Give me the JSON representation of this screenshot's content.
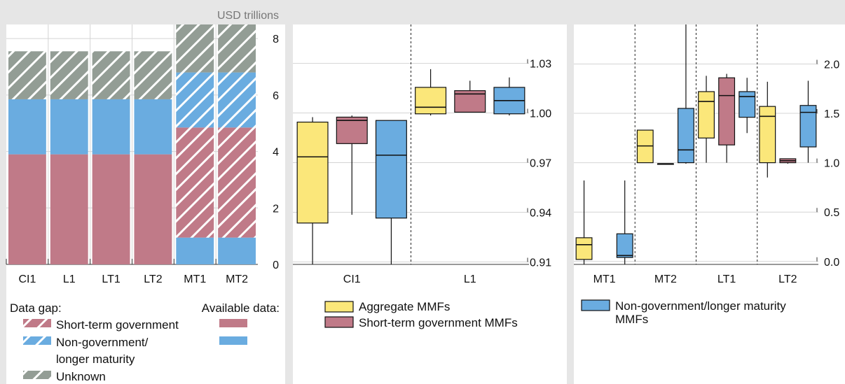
{
  "colors": {
    "yellow": "#fbe77a",
    "red": "#c07a88",
    "blue": "#6aace0",
    "grey": "#939d95",
    "grid": "#d4d4d4",
    "background": "#e6e6e6",
    "panel": "#ffffff"
  },
  "chart_data": [
    {
      "type": "bar",
      "stacked": true,
      "unit_label": "USD trillions",
      "categories": [
        "CI1",
        "L1",
        "LT1",
        "LT2",
        "MT1",
        "MT2"
      ],
      "ylim": [
        0,
        8.5
      ],
      "yticks": [
        "0",
        "2",
        "4",
        "6",
        "8"
      ],
      "grid": true,
      "series": [
        {
          "color_key": "blue",
          "pattern": "solid",
          "values": [
            0,
            0,
            0,
            0,
            0.95,
            0.95
          ]
        },
        {
          "color_key": "red",
          "pattern": "solid",
          "values": [
            3.9,
            3.9,
            3.9,
            3.9,
            0,
            0
          ]
        },
        {
          "color_key": "red",
          "pattern": "hatched",
          "values": [
            0,
            0,
            0,
            0,
            3.9,
            3.9
          ]
        },
        {
          "color_key": "blue",
          "pattern": "solid",
          "values": [
            1.95,
            1.95,
            1.95,
            1.95,
            0,
            0
          ]
        },
        {
          "color_key": "blue",
          "pattern": "hatched",
          "values": [
            0,
            0,
            0,
            0,
            1.95,
            1.95
          ]
        },
        {
          "color_key": "grey",
          "pattern": "hatched",
          "values": [
            1.7,
            1.7,
            1.7,
            1.7,
            1.7,
            1.7
          ]
        }
      ],
      "legend": {
        "data_gap_title": "Data gap:",
        "available_title": "Available data:",
        "items": [
          "Short-term government",
          "Non-government/",
          "longer maturity",
          "Unknown"
        ]
      }
    },
    {
      "type": "boxplot",
      "groups": [
        "CI1",
        "L1"
      ],
      "ylim": [
        0.9085,
        1.0535
      ],
      "yticks": [
        "0.91",
        "0.94",
        "0.97",
        "1.00",
        "1.03"
      ],
      "ytick_values": [
        0.91,
        0.94,
        0.97,
        1.0,
        1.03
      ],
      "grid": true,
      "boxes": [
        {
          "group": "CI1",
          "color_key": "yellow",
          "whisker_low": 0.9085,
          "q1": 0.9335,
          "median": 0.9735,
          "q3": 0.9945,
          "whisker_high": 0.9975
        },
        {
          "group": "CI1",
          "color_key": "red",
          "whisker_low": 0.9385,
          "q1": 0.9815,
          "median": 0.9955,
          "q3": 0.9975,
          "whisker_high": 0.9985
        },
        {
          "group": "CI1",
          "color_key": "blue",
          "whisker_low": 0.9085,
          "q1": 0.9365,
          "median": 0.9745,
          "q3": 0.9955,
          "whisker_high": 0.9955
        },
        {
          "group": "L1",
          "color_key": "yellow",
          "whisker_low": 0.9985,
          "q1": 0.9995,
          "median": 1.0035,
          "q3": 1.0155,
          "whisker_high": 1.0265
        },
        {
          "group": "L1",
          "color_key": "red",
          "whisker_low": 1.0005,
          "q1": 1.0005,
          "median": 1.0115,
          "q3": 1.0135,
          "whisker_high": 1.0195
        },
        {
          "group": "L1",
          "color_key": "blue",
          "whisker_low": 0.9985,
          "q1": 0.9995,
          "median": 1.0075,
          "q3": 1.0155,
          "whisker_high": 1.0215
        }
      ],
      "legend": [
        "Aggregate MMFs",
        "Short-term government MMFs"
      ]
    },
    {
      "type": "boxplot",
      "groups": [
        "MT1",
        "MT2",
        "LT1",
        "LT2"
      ],
      "ylim": [
        -0.03,
        2.4
      ],
      "yticks": [
        "0.0",
        "0.5",
        "1.0",
        "1.5",
        "2.0"
      ],
      "ytick_values": [
        0,
        0.5,
        1.0,
        1.5,
        2.0
      ],
      "grid": true,
      "boxes": [
        {
          "group": "MT1",
          "color_key": "yellow",
          "whisker_low": -0.03,
          "q1": 0.02,
          "median": 0.17,
          "q3": 0.24,
          "whisker_high": 0.82
        },
        {
          "group": "MT1",
          "color_key": "blue",
          "whisker_low": -0.03,
          "q1": 0.04,
          "median": 0.06,
          "q3": 0.28,
          "whisker_high": 0.82
        },
        {
          "group": "MT2",
          "color_key": "yellow",
          "whisker_low": 1.0,
          "q1": 1.0,
          "median": 1.17,
          "q3": 1.33,
          "whisker_high": 1.33
        },
        {
          "group": "MT2",
          "color_key": "red",
          "whisker_low": 0.99,
          "q1": 0.99,
          "median": 0.99,
          "q3": 0.99,
          "whisker_high": 0.99
        },
        {
          "group": "MT2",
          "color_key": "blue",
          "whisker_low": 0.99,
          "q1": 1.0,
          "median": 1.13,
          "q3": 1.55,
          "whisker_high": 2.4
        },
        {
          "group": "LT1",
          "color_key": "yellow",
          "whisker_low": 1.0,
          "q1": 1.25,
          "median": 1.62,
          "q3": 1.72,
          "whisker_high": 1.88
        },
        {
          "group": "LT1",
          "color_key": "red",
          "whisker_low": 1.0,
          "q1": 1.18,
          "median": 1.68,
          "q3": 1.86,
          "whisker_high": 1.9
        },
        {
          "group": "LT1",
          "color_key": "blue",
          "whisker_low": 1.3,
          "q1": 1.46,
          "median": 1.67,
          "q3": 1.72,
          "whisker_high": 1.86
        },
        {
          "group": "LT2",
          "color_key": "yellow",
          "whisker_low": 0.85,
          "q1": 1.0,
          "median": 1.47,
          "q3": 1.57,
          "whisker_high": 1.82
        },
        {
          "group": "LT2",
          "color_key": "red",
          "whisker_low": 0.99,
          "q1": 1.0,
          "median": 1.02,
          "q3": 1.04,
          "whisker_high": 1.04
        },
        {
          "group": "LT2",
          "color_key": "blue",
          "whisker_low": 1.0,
          "q1": 1.16,
          "median": 1.51,
          "q3": 1.58,
          "whisker_high": 1.83
        }
      ],
      "legend": [
        "Non-government/longer maturity",
        "MMFs"
      ]
    }
  ]
}
